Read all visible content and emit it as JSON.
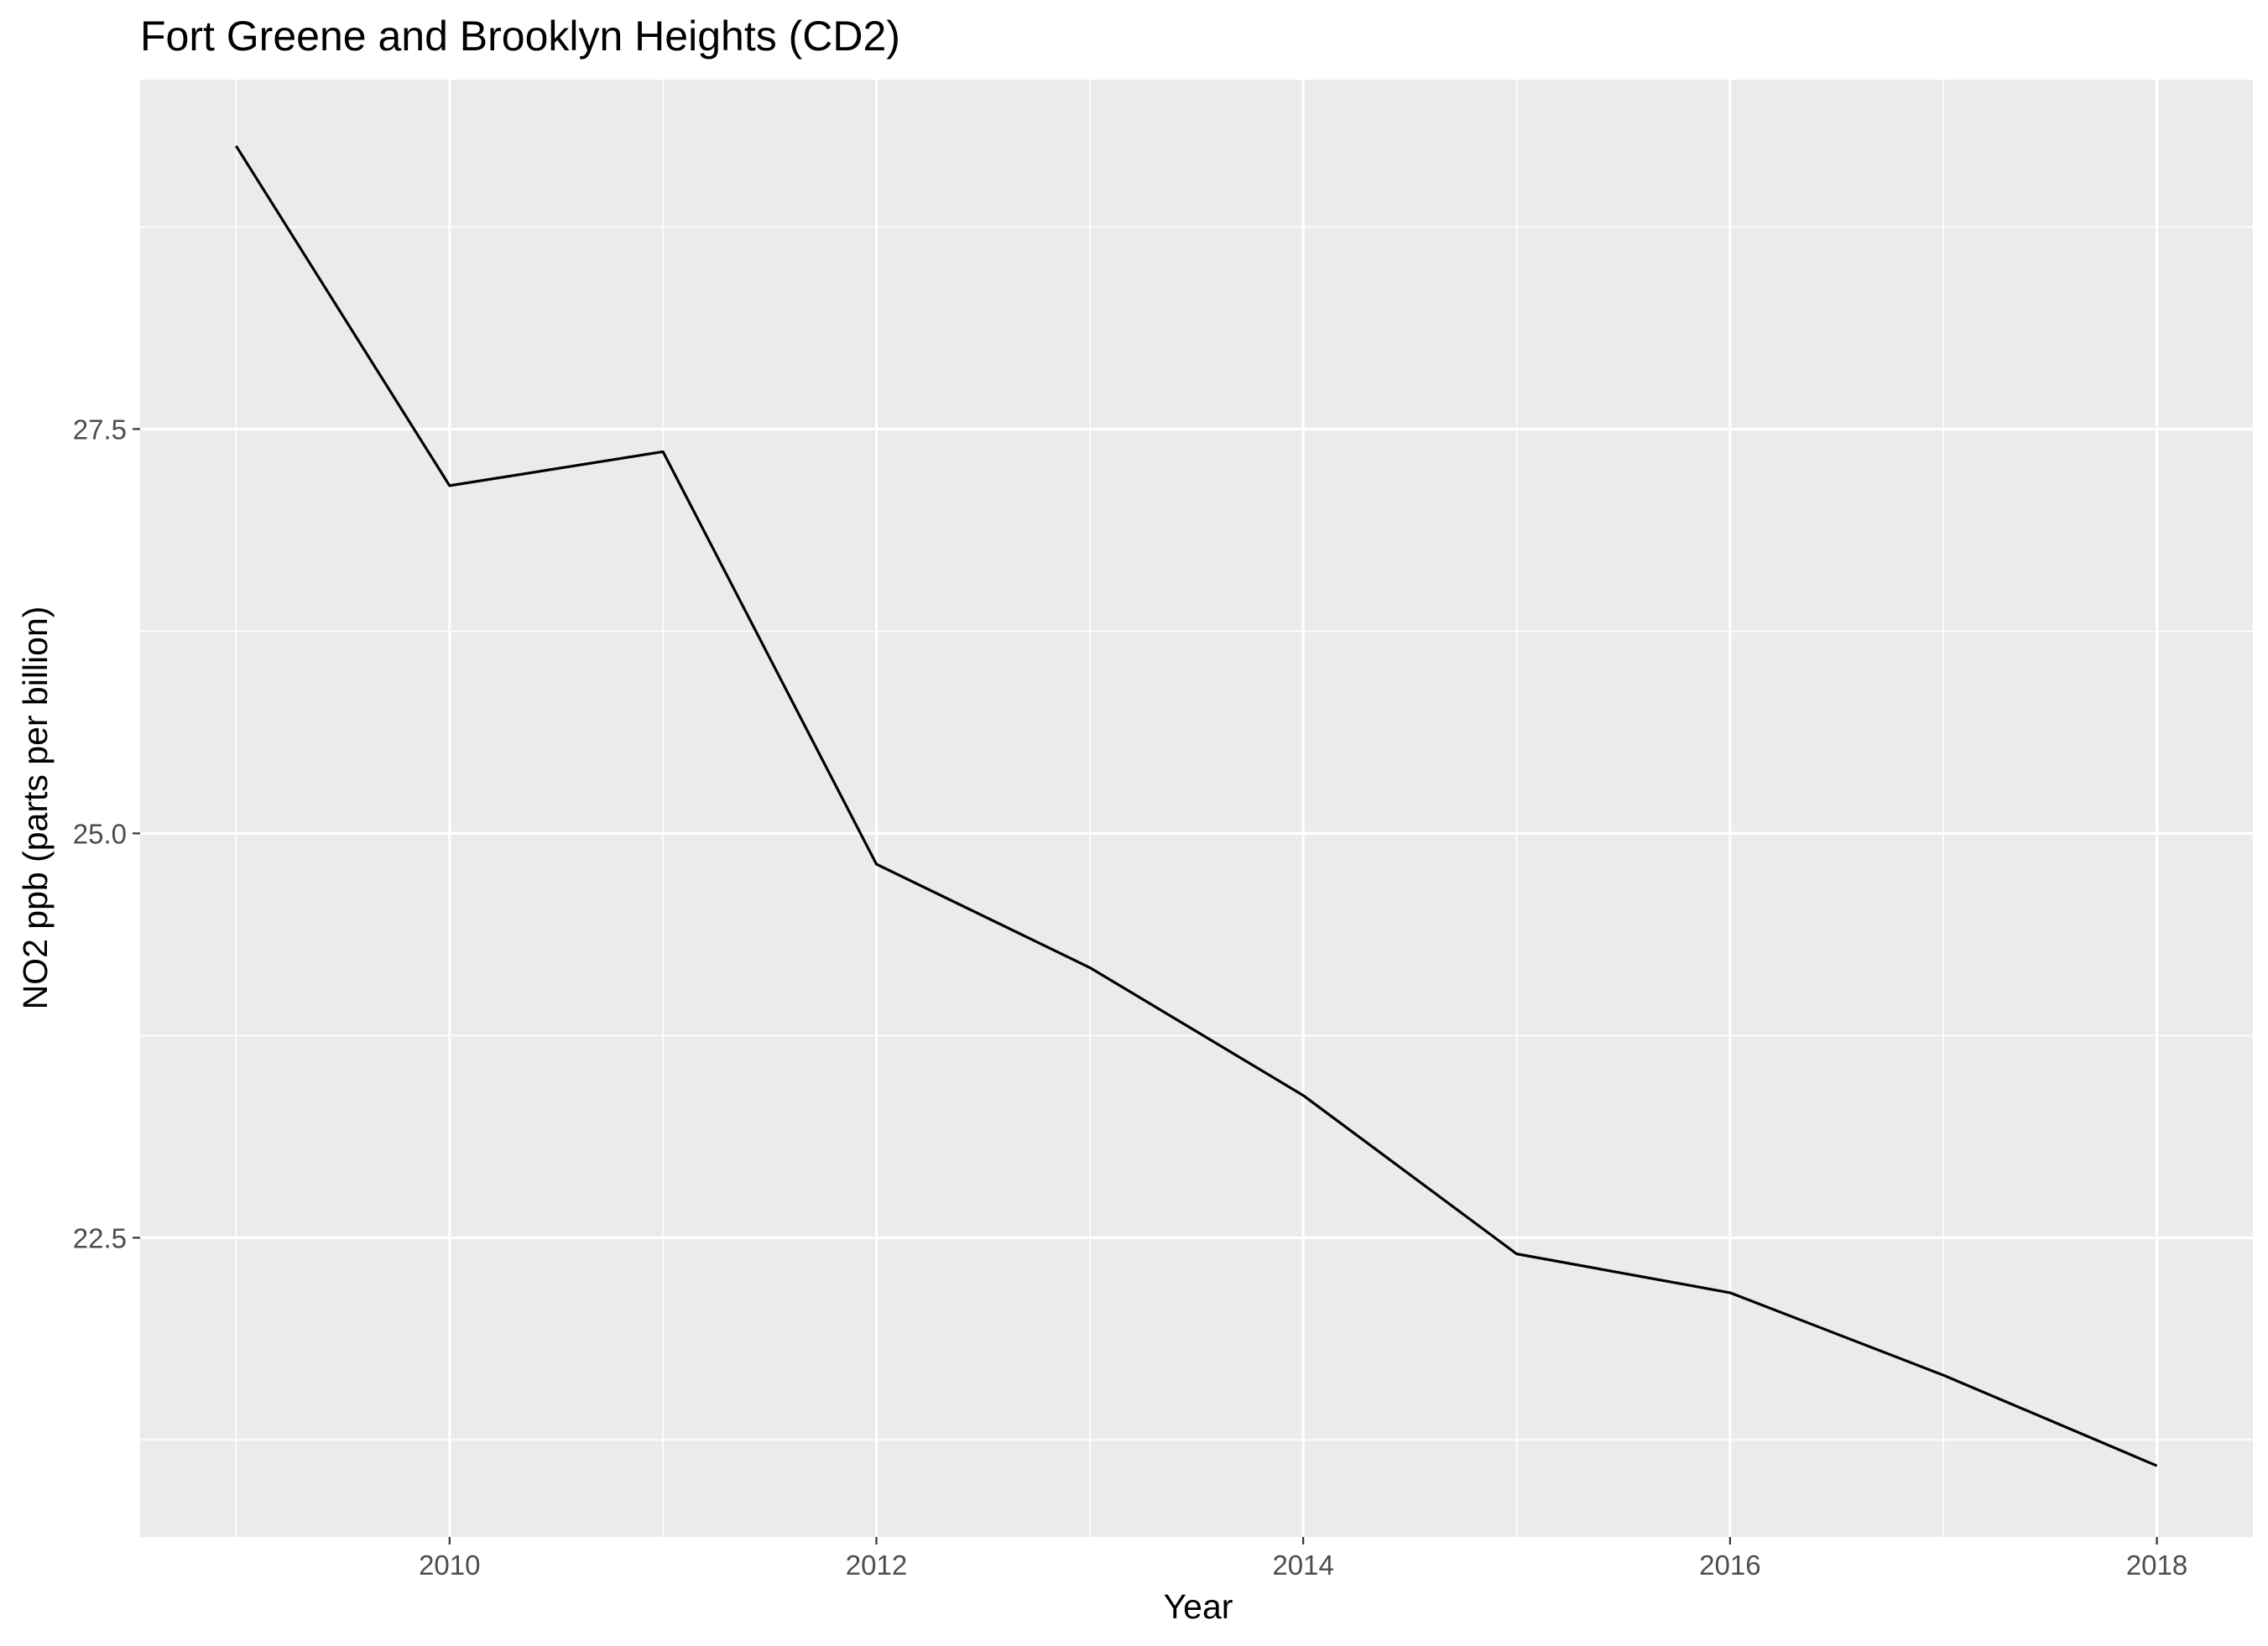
{
  "chart_data": {
    "type": "line",
    "title": "Fort Greene and Brooklyn Heights (CD2)",
    "xlabel": "Year",
    "ylabel": "NO2 ppb (parts per billion)",
    "x": [
      2009,
      2010,
      2011,
      2012,
      2013,
      2014,
      2015,
      2016,
      2017,
      2018
    ],
    "series": [
      {
        "values": [
          29.25,
          27.15,
          27.36,
          24.81,
          24.17,
          23.38,
          22.4,
          22.16,
          21.65,
          21.09
        ]
      }
    ],
    "xlim": [
      2008.55,
      2018.45
    ],
    "ylim": [
      20.65,
      29.66
    ],
    "x_ticks": [
      2010,
      2012,
      2014,
      2016,
      2018
    ],
    "x_tick_labels": [
      "2010",
      "2012",
      "2014",
      "2016",
      "2018"
    ],
    "x_minor_ticks": [
      2009,
      2011,
      2013,
      2015,
      2017
    ],
    "y_ticks": [
      22.5,
      25.0,
      27.5
    ],
    "y_tick_labels": [
      "22.5",
      "25.0",
      "27.5"
    ],
    "y_minor_ticks": [
      21.25,
      23.75,
      26.25,
      28.75
    ],
    "grid": true,
    "legend": "none",
    "colors": {
      "panel_background": "#ebebeb",
      "gridline": "#ffffff",
      "line": "#000000",
      "tick_mark": "#333333",
      "tick_text": "#4d4d4d",
      "title_text": "#000000"
    }
  }
}
